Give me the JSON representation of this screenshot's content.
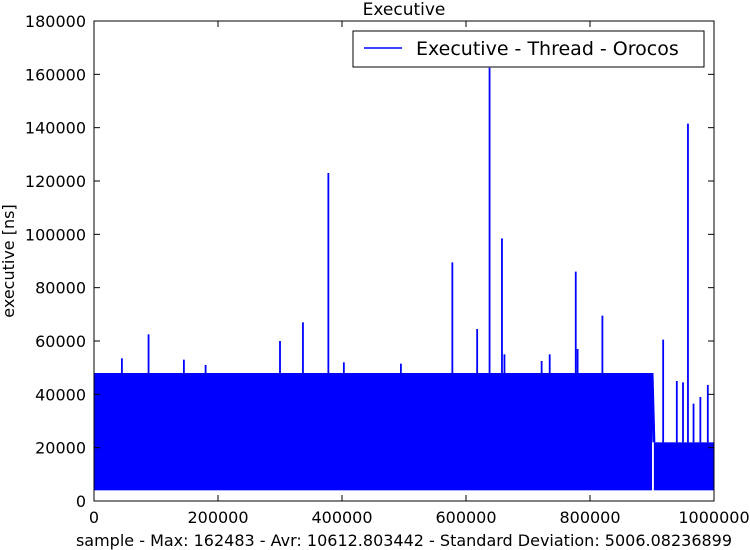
{
  "chart_data": {
    "type": "line",
    "title": "Executive",
    "xlabel": "sample - Max: 162483 - Avr: 10612.803442 - Standard Deviation: 5006.08236899",
    "ylabel": "executive [ns]",
    "xlim": [
      0,
      1000000
    ],
    "ylim": [
      0,
      180000
    ],
    "xticks": [
      0,
      200000,
      400000,
      600000,
      800000,
      1000000
    ],
    "yticks": [
      0,
      20000,
      40000,
      60000,
      80000,
      100000,
      120000,
      140000,
      160000,
      180000
    ],
    "grid": false,
    "legend_position": "top-right",
    "color": "#0000ff",
    "series": [
      {
        "name": "Executive - Thread - Orocos",
        "band": [
          {
            "x_start": 0,
            "x_end": 900000,
            "low": 4000,
            "high": 48000
          },
          {
            "x_start": 903000,
            "x_end": 1000000,
            "low": 4000,
            "high": 22000
          }
        ],
        "spikes": [
          {
            "x": 45000,
            "y": 53500
          },
          {
            "x": 88000,
            "y": 62500
          },
          {
            "x": 145000,
            "y": 53000
          },
          {
            "x": 180000,
            "y": 51000
          },
          {
            "x": 300000,
            "y": 60000
          },
          {
            "x": 337000,
            "y": 67000
          },
          {
            "x": 378000,
            "y": 123000
          },
          {
            "x": 403000,
            "y": 52000
          },
          {
            "x": 495000,
            "y": 51500
          },
          {
            "x": 578000,
            "y": 89500
          },
          {
            "x": 618000,
            "y": 64500
          },
          {
            "x": 638000,
            "y": 162483
          },
          {
            "x": 658000,
            "y": 98500
          },
          {
            "x": 662000,
            "y": 55000
          },
          {
            "x": 722000,
            "y": 52500
          },
          {
            "x": 735000,
            "y": 55000
          },
          {
            "x": 777000,
            "y": 86000
          },
          {
            "x": 780000,
            "y": 57000
          },
          {
            "x": 820000,
            "y": 69500
          },
          {
            "x": 918000,
            "y": 60500
          },
          {
            "x": 940000,
            "y": 45000
          },
          {
            "x": 950000,
            "y": 44500
          },
          {
            "x": 958000,
            "y": 141500
          },
          {
            "x": 967000,
            "y": 36500
          },
          {
            "x": 978000,
            "y": 39000
          },
          {
            "x": 990000,
            "y": 43500
          }
        ]
      }
    ]
  }
}
